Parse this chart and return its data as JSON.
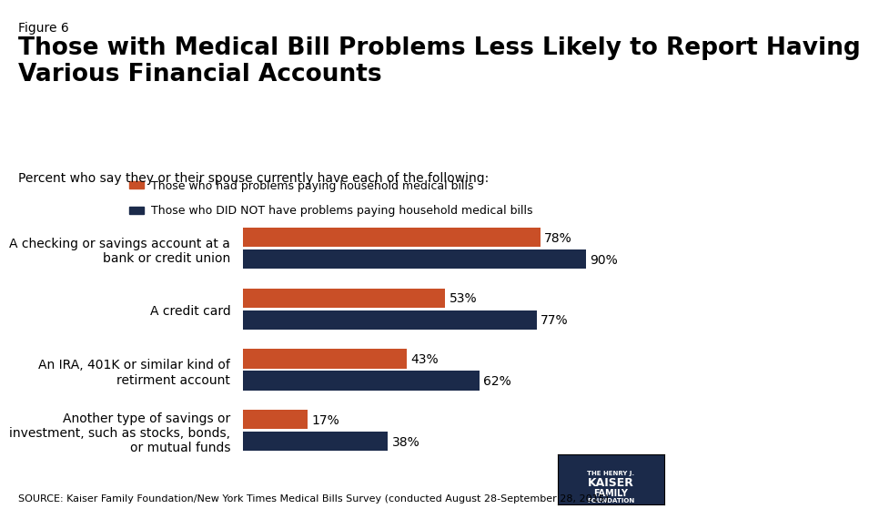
{
  "figure_label": "Figure 6",
  "title": "Those with Medical Bill Problems Less Likely to Report Having\nVarious Financial Accounts",
  "subtitle": "Percent who say they or their spouse currently have each of the following:",
  "source": "SOURCE: Kaiser Family Foundation/New York Times Medical Bills Survey (conducted August 28-September 28, 2015)",
  "categories": [
    "A checking or savings account at a\nbank or credit union",
    "A credit card",
    "An IRA, 401K or similar kind of\nretirment account",
    "Another type of savings or\ninvestment, such as stocks, bonds,\nor mutual funds"
  ],
  "values_problems": [
    78,
    53,
    43,
    17
  ],
  "values_no_problems": [
    90,
    77,
    62,
    38
  ],
  "color_problems": "#C94F27",
  "color_no_problems": "#1B2A4A",
  "legend_labels": [
    "Those who had problems paying household medical bills",
    "Those who DID NOT have problems paying household medical bills"
  ],
  "bar_height": 0.32,
  "xlim": [
    0,
    100
  ],
  "background_color": "#ffffff",
  "title_fontsize": 19,
  "figure_label_fontsize": 10,
  "subtitle_fontsize": 10,
  "label_fontsize": 10,
  "bar_label_fontsize": 10,
  "legend_fontsize": 9,
  "source_fontsize": 8
}
